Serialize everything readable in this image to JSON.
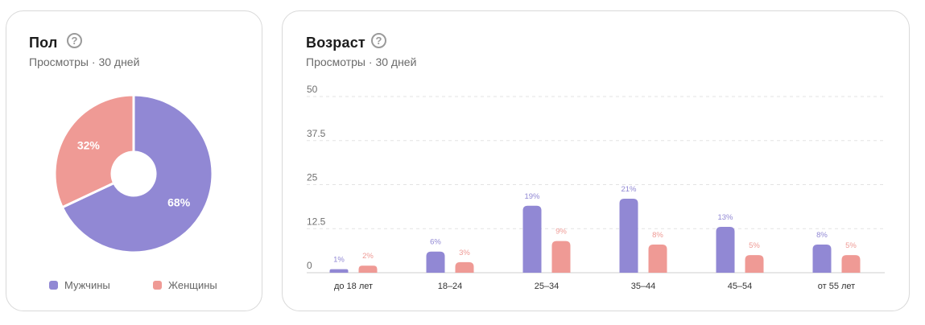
{
  "colors": {
    "male": "#9188d4",
    "female": "#ef9a95"
  },
  "gender": {
    "title": "Пол",
    "subtitle": "Просмотры · 30 дней",
    "help_icon": "question-circle-icon",
    "legend": [
      "Мужчины",
      "Женщины"
    ]
  },
  "age": {
    "title": "Возраст",
    "subtitle": "Просмотры · 30 дней",
    "help_icon": "question-circle-icon"
  },
  "chart_data": [
    {
      "type": "pie",
      "subtype": "donut",
      "title": "Пол",
      "labels": [
        "Мужчины",
        "Женщины"
      ],
      "values": [
        68,
        32
      ],
      "value_labels": [
        "68%",
        "32%"
      ],
      "legend_position": "bottom"
    },
    {
      "type": "bar",
      "title": "Возраст",
      "categories": [
        "до 18 лет",
        "18–24",
        "25–34",
        "35–44",
        "45–54",
        "от 55 лет"
      ],
      "series": [
        {
          "name": "Мужчины",
          "values": [
            1,
            6,
            19,
            21,
            13,
            8
          ],
          "labels": [
            "1%",
            "6%",
            "19%",
            "21%",
            "13%",
            "8%"
          ]
        },
        {
          "name": "Женщины",
          "values": [
            2,
            3,
            9,
            8,
            5,
            5
          ],
          "labels": [
            "2%",
            "3%",
            "9%",
            "8%",
            "5%",
            "5%"
          ]
        }
      ],
      "ylim": [
        0,
        50
      ],
      "yticks": [
        0,
        12.5,
        25,
        37.5,
        50
      ],
      "ytick_labels": [
        "0",
        "12.5",
        "25",
        "37.5",
        "50"
      ],
      "grid": true
    }
  ]
}
